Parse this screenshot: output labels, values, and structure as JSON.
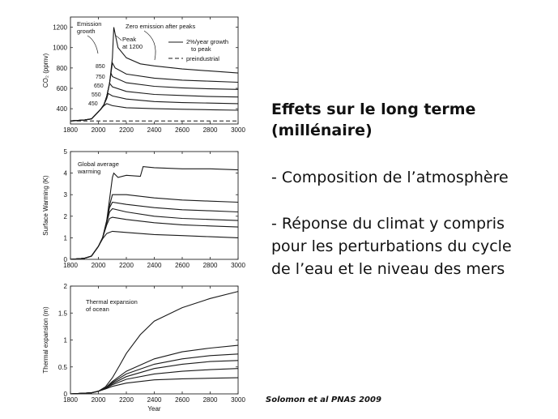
{
  "slide": {
    "heading_line1": "Effets sur le long terme",
    "heading_line2": "(millénaire)",
    "bullet1": "- Composition de l’atmosphère",
    "bullet2_line1": "- Réponse du climat y compris",
    "bullet2_line2": "pour les perturbations du cycle",
    "bullet2_line3": "de l’eau et le niveau des mers",
    "citation": "Solomon et al PNAS 2009"
  },
  "chart_data": [
    {
      "type": "line",
      "ylabel": "CO₂ (ppmv)",
      "xlabel": "",
      "xlim": [
        1800,
        3000
      ],
      "ylim": [
        250,
        1300
      ],
      "xticks": [
        1800,
        2000,
        2200,
        2400,
        2600,
        2800,
        3000
      ],
      "yticks": [
        400,
        600,
        800,
        1000,
        1200
      ],
      "legend": {
        "position": "top-right",
        "entries": [
          "2%/year growth to peak",
          "preindustrial"
        ]
      },
      "annotations": [
        "Emission growth",
        "Zero emission after peaks",
        "Peak at 1200"
      ],
      "series": [
        {
          "name": "450",
          "x": [
            1800,
            1900,
            1950,
            2000,
            2020,
            2040,
            2060,
            2100,
            2200,
            2400,
            2600,
            2800,
            3000
          ],
          "y": [
            280,
            290,
            300,
            370,
            400,
            430,
            450,
            430,
            410,
            400,
            395,
            390,
            385
          ]
        },
        {
          "name": "550",
          "x": [
            1800,
            1900,
            1950,
            2000,
            2020,
            2040,
            2060,
            2070,
            2100,
            2200,
            2400,
            2600,
            2800,
            3000
          ],
          "y": [
            280,
            290,
            300,
            370,
            400,
            440,
            500,
            550,
            525,
            495,
            470,
            460,
            455,
            450
          ]
        },
        {
          "name": "650",
          "x": [
            1800,
            1900,
            1950,
            2000,
            2020,
            2040,
            2060,
            2080,
            2100,
            2200,
            2400,
            2600,
            2800,
            3000
          ],
          "y": [
            280,
            290,
            300,
            370,
            400,
            440,
            520,
            650,
            615,
            570,
            540,
            530,
            520,
            515
          ]
        },
        {
          "name": "750",
          "x": [
            1800,
            1900,
            1950,
            2000,
            2020,
            2040,
            2060,
            2080,
            2090,
            2100,
            2200,
            2400,
            2600,
            2800,
            3000
          ],
          "y": [
            280,
            290,
            300,
            370,
            400,
            440,
            520,
            650,
            750,
            715,
            655,
            620,
            605,
            595,
            590
          ]
        },
        {
          "name": "850",
          "x": [
            1800,
            1900,
            1950,
            2000,
            2020,
            2040,
            2060,
            2080,
            2100,
            2120,
            2200,
            2400,
            2600,
            2800,
            3000
          ],
          "y": [
            280,
            290,
            300,
            370,
            400,
            440,
            520,
            650,
            850,
            800,
            740,
            700,
            680,
            670,
            660
          ]
        },
        {
          "name": "1200",
          "x": [
            1800,
            1900,
            1950,
            2000,
            2020,
            2040,
            2060,
            2080,
            2100,
            2110,
            2140,
            2200,
            2300,
            2400,
            2600,
            2800,
            3000
          ],
          "y": [
            280,
            290,
            300,
            370,
            400,
            440,
            520,
            650,
            900,
            1200,
            1000,
            900,
            840,
            820,
            790,
            770,
            750
          ]
        },
        {
          "name": "preindustrial",
          "x": [
            1800,
            3000
          ],
          "y": [
            280,
            280
          ],
          "dashed": true
        }
      ]
    },
    {
      "type": "line",
      "ylabel": "Surface Warming (K)",
      "xlabel": "",
      "xlim": [
        1800,
        3000
      ],
      "ylim": [
        0,
        5
      ],
      "xticks": [
        1800,
        2000,
        2200,
        2400,
        2600,
        2800,
        3000
      ],
      "yticks": [
        0,
        1,
        2,
        3,
        4,
        5
      ],
      "annotations": [
        "Global average warming"
      ],
      "series": [
        {
          "name": "450",
          "x": [
            1800,
            1900,
            1950,
            2000,
            2030,
            2060,
            2100,
            2200,
            2400,
            2600,
            2800,
            3000
          ],
          "y": [
            0,
            0.05,
            0.15,
            0.6,
            0.95,
            1.2,
            1.3,
            1.25,
            1.15,
            1.1,
            1.05,
            1.0
          ]
        },
        {
          "name": "550",
          "x": [
            1800,
            1900,
            1950,
            2000,
            2030,
            2060,
            2080,
            2100,
            2200,
            2400,
            2600,
            2800,
            3000
          ],
          "y": [
            0,
            0.05,
            0.15,
            0.6,
            1.0,
            1.6,
            1.9,
            1.95,
            1.85,
            1.7,
            1.6,
            1.55,
            1.5
          ]
        },
        {
          "name": "650",
          "x": [
            1800,
            1900,
            1950,
            2000,
            2030,
            2060,
            2080,
            2100,
            2200,
            2400,
            2600,
            2800,
            3000
          ],
          "y": [
            0,
            0.05,
            0.15,
            0.6,
            1.0,
            1.7,
            2.2,
            2.35,
            2.2,
            2.0,
            1.9,
            1.85,
            1.8
          ]
        },
        {
          "name": "750",
          "x": [
            1800,
            1900,
            1950,
            2000,
            2030,
            2060,
            2080,
            2100,
            2200,
            2400,
            2600,
            2800,
            3000
          ],
          "y": [
            0,
            0.05,
            0.15,
            0.6,
            1.0,
            1.75,
            2.4,
            2.65,
            2.55,
            2.4,
            2.3,
            2.25,
            2.2
          ]
        },
        {
          "name": "850",
          "x": [
            1800,
            1900,
            1950,
            2000,
            2030,
            2060,
            2080,
            2100,
            2200,
            2400,
            2600,
            2800,
            3000
          ],
          "y": [
            0,
            0.05,
            0.15,
            0.6,
            1.0,
            1.8,
            2.5,
            3.0,
            3.0,
            2.85,
            2.75,
            2.7,
            2.65
          ]
        },
        {
          "name": "1200",
          "x": [
            1800,
            1900,
            1950,
            2000,
            2030,
            2060,
            2080,
            2100,
            2110,
            2140,
            2200,
            2300,
            2320,
            2400,
            2600,
            2800,
            3000
          ],
          "y": [
            0,
            0.05,
            0.15,
            0.6,
            1.0,
            1.8,
            2.8,
            3.8,
            4.0,
            3.8,
            3.9,
            3.85,
            4.3,
            4.25,
            4.2,
            4.2,
            4.15
          ]
        }
      ]
    },
    {
      "type": "line",
      "ylabel": "Thermal expansion (m)",
      "xlabel": "Year",
      "xlim": [
        1800,
        3000
      ],
      "ylim": [
        0,
        2
      ],
      "xticks": [
        1800,
        2000,
        2200,
        2400,
        2600,
        2800,
        3000
      ],
      "yticks": [
        0,
        0.5,
        1,
        1.5,
        2
      ],
      "annotations": [
        "Thermal expansion of ocean"
      ],
      "series": [
        {
          "name": "450",
          "x": [
            1800,
            1950,
            2000,
            2050,
            2100,
            2200,
            2400,
            2600,
            2800,
            3000
          ],
          "y": [
            0,
            0.02,
            0.05,
            0.09,
            0.14,
            0.2,
            0.26,
            0.28,
            0.29,
            0.3
          ]
        },
        {
          "name": "550",
          "x": [
            1800,
            1950,
            2000,
            2050,
            2100,
            2200,
            2400,
            2600,
            2800,
            3000
          ],
          "y": [
            0,
            0.02,
            0.05,
            0.1,
            0.17,
            0.27,
            0.37,
            0.42,
            0.45,
            0.47
          ]
        },
        {
          "name": "650",
          "x": [
            1800,
            1950,
            2000,
            2050,
            2100,
            2200,
            2400,
            2600,
            2800,
            3000
          ],
          "y": [
            0,
            0.02,
            0.05,
            0.1,
            0.19,
            0.32,
            0.47,
            0.55,
            0.6,
            0.62
          ]
        },
        {
          "name": "750",
          "x": [
            1800,
            1950,
            2000,
            2050,
            2100,
            2200,
            2400,
            2600,
            2800,
            3000
          ],
          "y": [
            0,
            0.02,
            0.05,
            0.11,
            0.21,
            0.37,
            0.55,
            0.65,
            0.71,
            0.74
          ]
        },
        {
          "name": "850",
          "x": [
            1800,
            1950,
            2000,
            2050,
            2100,
            2200,
            2400,
            2600,
            2800,
            3000
          ],
          "y": [
            0,
            0.02,
            0.05,
            0.11,
            0.23,
            0.42,
            0.65,
            0.78,
            0.85,
            0.9
          ]
        },
        {
          "name": "1200",
          "x": [
            1800,
            1950,
            2000,
            2050,
            2100,
            2150,
            2200,
            2300,
            2400,
            2600,
            2800,
            3000
          ],
          "y": [
            0,
            0.02,
            0.05,
            0.13,
            0.3,
            0.52,
            0.75,
            1.1,
            1.35,
            1.6,
            1.77,
            1.9
          ]
        }
      ]
    }
  ]
}
